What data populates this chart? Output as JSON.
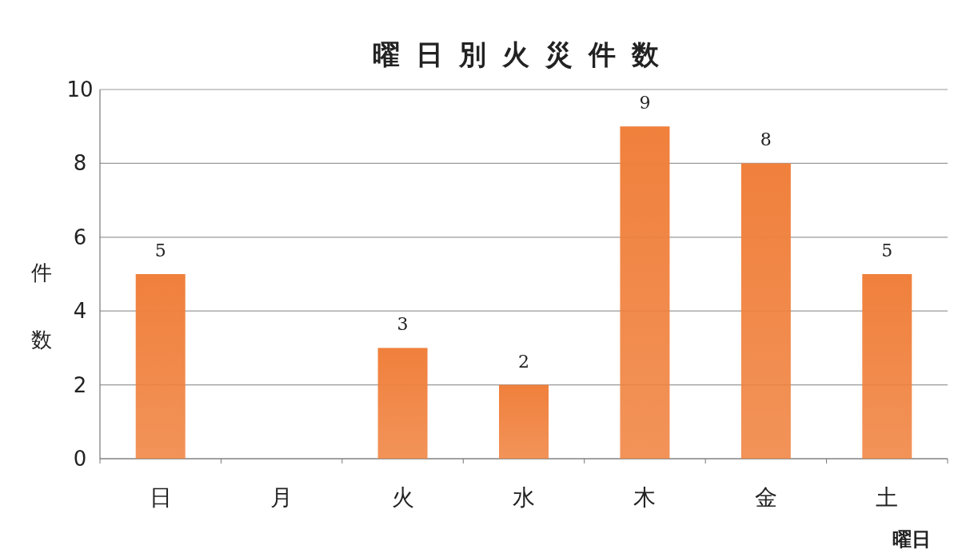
{
  "chart_data": {
    "type": "bar",
    "title": "曜日別火災件数",
    "xlabel": "曜日",
    "ylabel": "件数",
    "categories": [
      "日",
      "月",
      "火",
      "水",
      "木",
      "金",
      "土"
    ],
    "values": [
      5,
      0,
      3,
      2,
      9,
      8,
      5
    ],
    "value_labels": [
      "5",
      null,
      "3",
      "2",
      "9",
      "8",
      "5"
    ],
    "color": "#f0803c",
    "ylim": [
      0,
      10
    ],
    "yticks": [
      0,
      2,
      4,
      6,
      8,
      10
    ],
    "grid": "y"
  }
}
